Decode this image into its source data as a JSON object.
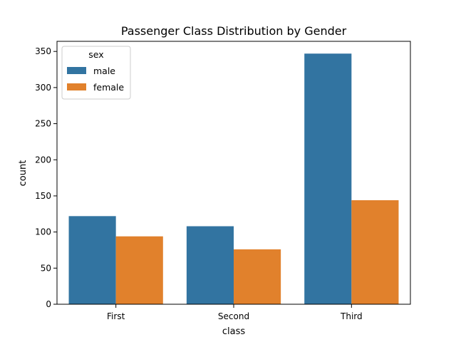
{
  "chart_data": {
    "type": "bar",
    "title": "Passenger Class Distribution by Gender",
    "xlabel": "class",
    "ylabel": "count",
    "categories": [
      "First",
      "Second",
      "Third"
    ],
    "series": [
      {
        "name": "male",
        "color": "#3274a1",
        "values": [
          122,
          108,
          347
        ]
      },
      {
        "name": "female",
        "color": "#e1812c",
        "values": [
          94,
          76,
          144
        ]
      }
    ],
    "ylim": [
      0,
      364
    ],
    "yticks": [
      0,
      50,
      100,
      150,
      200,
      250,
      300,
      350
    ],
    "grid": false,
    "legend": {
      "title": "sex",
      "placement": "top-left"
    }
  }
}
